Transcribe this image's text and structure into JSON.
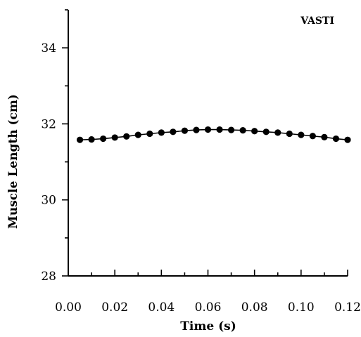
{
  "chart_data": {
    "type": "line",
    "title": "",
    "annotation": "VASTI",
    "xlabel": "Time (s)",
    "ylabel": "Muscle Length (cm)",
    "xlim": [
      0.0,
      0.12
    ],
    "ylim": [
      28,
      35
    ],
    "x_major_ticks": [
      0.0,
      0.02,
      0.04,
      0.06,
      0.08,
      0.1,
      0.12
    ],
    "x_tick_labels": [
      "0.00",
      "0.02",
      "0.04",
      "0.06",
      "0.08",
      "0.10",
      "0.12"
    ],
    "x_minor_step": 0.01,
    "y_major_ticks": [
      28,
      30,
      32,
      34
    ],
    "y_tick_labels": [
      "28",
      "30",
      "32",
      "34"
    ],
    "y_minor_step": 1,
    "grid": false,
    "series": [
      {
        "x": [
          0.005,
          0.01,
          0.015,
          0.02,
          0.025,
          0.03,
          0.035,
          0.04,
          0.045,
          0.05,
          0.055,
          0.06,
          0.065,
          0.07,
          0.075,
          0.08,
          0.085,
          0.09,
          0.095,
          0.1,
          0.105,
          0.11,
          0.115,
          0.12
        ],
        "y": [
          31.58,
          31.59,
          31.61,
          31.64,
          31.67,
          31.71,
          31.74,
          31.77,
          31.79,
          31.82,
          31.84,
          31.85,
          31.85,
          31.84,
          31.83,
          31.81,
          31.79,
          31.77,
          31.74,
          31.71,
          31.68,
          31.65,
          31.61,
          31.58
        ]
      }
    ]
  }
}
